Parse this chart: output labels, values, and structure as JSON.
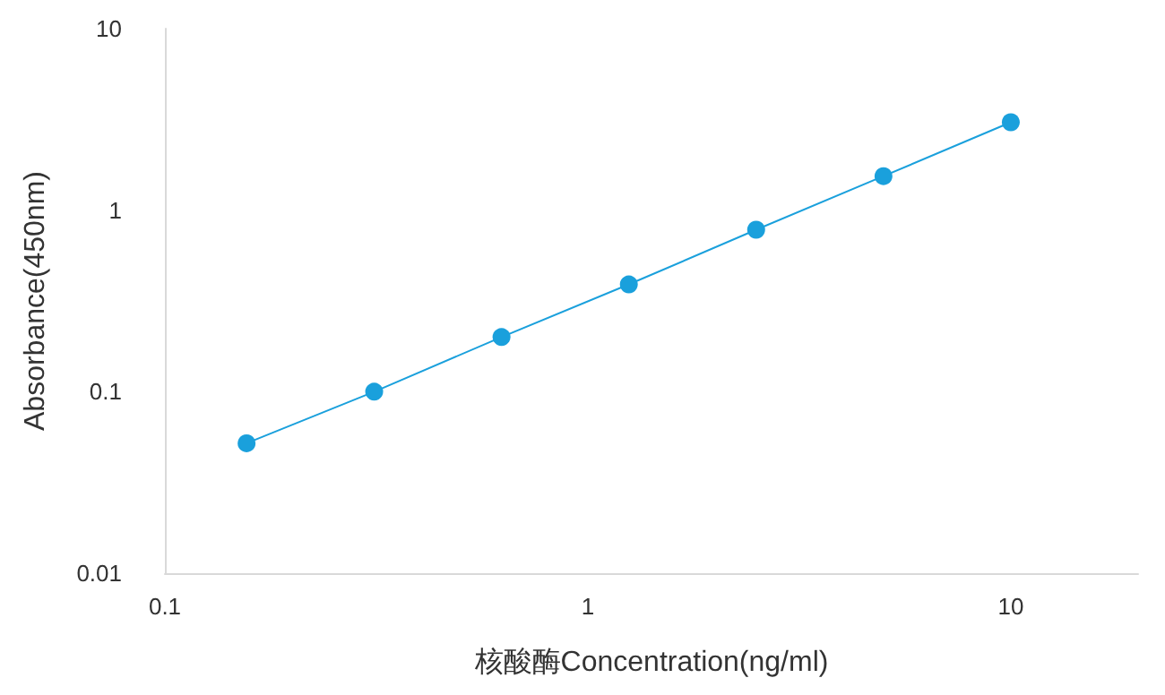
{
  "chart_data": {
    "type": "line",
    "xlabel": "核酸酶Concentration(ng/ml)",
    "ylabel": "Absorbance(450nm)",
    "x": [
      0.156,
      0.3125,
      0.625,
      1.25,
      2.5,
      5,
      10
    ],
    "series": [
      {
        "color": "#1aa0dc",
        "values": [
          0.052,
          0.1,
          0.2,
          0.39,
          0.78,
          1.54,
          3.05
        ]
      }
    ],
    "log": "xy",
    "xlim": [
      0.1,
      20
    ],
    "xticks": [
      0.1,
      1,
      10
    ],
    "ylim": [
      0.01,
      10
    ],
    "yticks": [
      0.01,
      0.1,
      1,
      10
    ],
    "grid": false,
    "marker": "circle",
    "line_style": "solid"
  }
}
